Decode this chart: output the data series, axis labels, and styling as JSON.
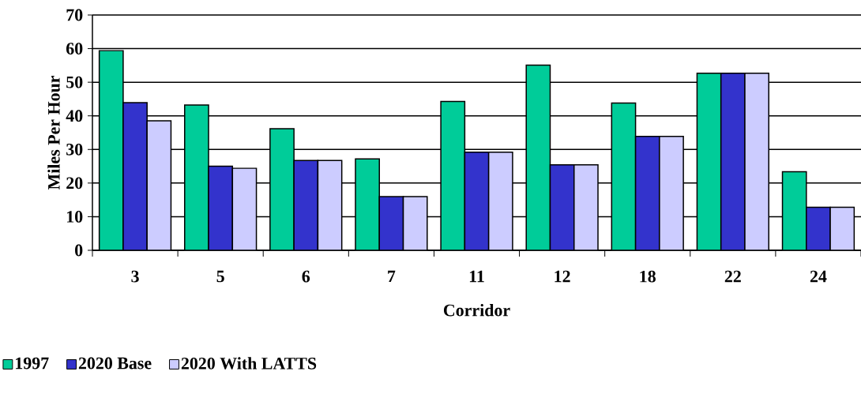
{
  "chart_data": {
    "type": "bar",
    "xlabel": "Corridor",
    "ylabel": "Miles Per Hour",
    "categories": [
      "3",
      "5",
      "6",
      "7",
      "11",
      "12",
      "18",
      "22",
      "24"
    ],
    "series": [
      {
        "name": "1997",
        "color": "#00cc99",
        "values": [
          59.4,
          43.2,
          36.2,
          27.2,
          44.3,
          55.1,
          43.8,
          52.7,
          23.4
        ]
      },
      {
        "name": "2020 Base",
        "color": "#3333cc",
        "values": [
          43.9,
          25.0,
          26.7,
          16.0,
          29.2,
          25.4,
          33.9,
          52.7,
          12.8
        ]
      },
      {
        "name": "2020 With LATTS",
        "color": "#ccccff",
        "values": [
          38.5,
          24.4,
          26.7,
          16.0,
          29.2,
          25.4,
          33.9,
          52.7,
          12.8
        ]
      }
    ],
    "ylim": [
      0,
      70
    ],
    "yticks": [
      0,
      10,
      20,
      30,
      40,
      50,
      60,
      70
    ],
    "grid": "y",
    "legend": "bottom left"
  }
}
